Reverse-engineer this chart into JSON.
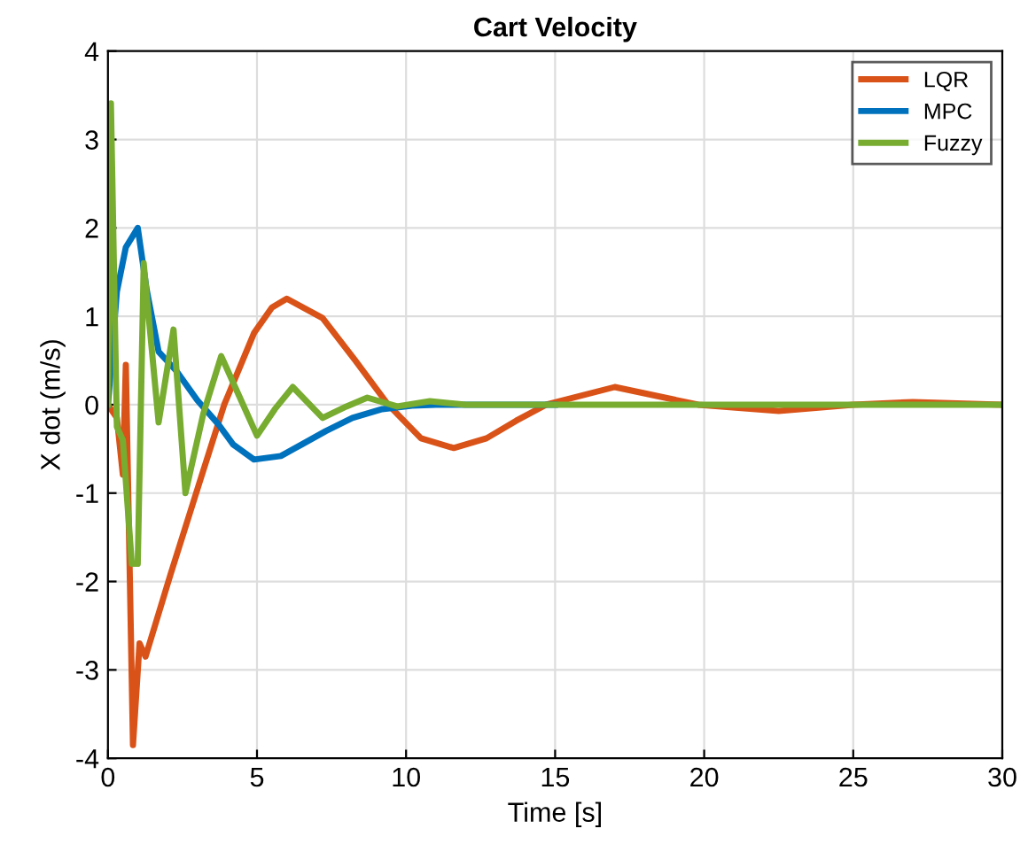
{
  "chart_data": {
    "type": "line",
    "title": "Cart Velocity",
    "xlabel": "Time [s]",
    "ylabel": "X dot (m/s)",
    "xlim": [
      0,
      30
    ],
    "ylim": [
      -4,
      4
    ],
    "xticks": [
      0,
      5,
      10,
      15,
      20,
      25,
      30
    ],
    "yticks": [
      -4,
      -3,
      -2,
      -1,
      0,
      1,
      2,
      3,
      4
    ],
    "grid": true,
    "legend": "top right",
    "line_style": "solid",
    "series": [
      {
        "name": "LQR",
        "color": "#d95319",
        "x": [
          0,
          0.3,
          0.5,
          0.6,
          0.84,
          1.06,
          1.26,
          2.1,
          3.1,
          3.9,
          4.9,
          5.5,
          6.0,
          7.2,
          8.3,
          9.4,
          10.5,
          11.6,
          12.7,
          13.7,
          14.7,
          17.0,
          19.8,
          22.5,
          25,
          27,
          30
        ],
        "values": [
          0,
          -0.15,
          -0.79,
          0.45,
          -3.85,
          -2.7,
          -2.85,
          -1.92,
          -0.85,
          0,
          0.81,
          1.1,
          1.2,
          0.98,
          0.5,
          0,
          -0.38,
          -0.49,
          -0.38,
          -0.18,
          0,
          0.2,
          0,
          -0.07,
          0,
          0.03,
          0
        ]
      },
      {
        "name": "MPC",
        "color": "#0072bd",
        "x": [
          0,
          0.3,
          0.6,
          1.0,
          1.3,
          1.7,
          2.3,
          3.0,
          3.7,
          4.2,
          4.9,
          5.8,
          6.5,
          7.3,
          8.2,
          9.2,
          10.2,
          11.0,
          15
        ],
        "values": [
          0,
          1.28,
          1.78,
          2.0,
          1.3,
          0.6,
          0.38,
          0.05,
          -0.22,
          -0.45,
          -0.62,
          -0.58,
          -0.45,
          -0.3,
          -0.15,
          -0.05,
          -0.01,
          0,
          0
        ]
      },
      {
        "name": "Fuzzy",
        "color": "#77ac30",
        "x": [
          0,
          0.1,
          0.3,
          0.5,
          0.8,
          1.0,
          1.2,
          1.7,
          2.2,
          2.6,
          3.2,
          3.8,
          4.4,
          5.0,
          5.6,
          6.2,
          7.2,
          8.0,
          8.7,
          9.7,
          10.8,
          12,
          15,
          20,
          25,
          30
        ],
        "values": [
          0,
          3.41,
          -0.25,
          -0.4,
          -1.8,
          -1.8,
          1.6,
          -0.2,
          0.85,
          -1.0,
          -0.1,
          0.55,
          0.1,
          -0.35,
          -0.05,
          0.2,
          -0.15,
          -0.02,
          0.08,
          -0.02,
          0.04,
          0,
          0,
          0,
          0,
          0
        ]
      }
    ]
  }
}
